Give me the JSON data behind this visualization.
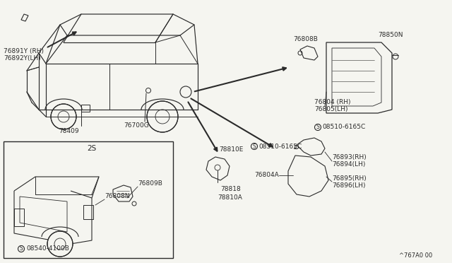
{
  "bg_color": "#f5f5f0",
  "line_color": "#2a2a2a",
  "text_color": "#2a2a2a",
  "font_size": 6.5,
  "diagram_ref": "^767A0 00",
  "parts": {
    "p76891Y": "76891Y (RH)",
    "p76892Y": "76892Y(LH)",
    "p76700G": "76700G",
    "p78409": "78409",
    "p76808B": "76808B",
    "p78850N": "78850N",
    "p76804": "76804 (RH)",
    "p76805": "76805(LH)",
    "s1": "S08510-6165C",
    "s2": "S08510-6165C",
    "p78810E": "78810E",
    "p78818": "78818",
    "p78810A": "78810A",
    "p76804A": "76804A",
    "p76893": "76893(RH)",
    "p76894": "76894(LH)",
    "p76895": "76895(RH)",
    "p76896": "76896(LH)",
    "p76808N": "76808N",
    "p76809B": "76809B",
    "s3": "S08540-4100B",
    "inset": "2S"
  }
}
